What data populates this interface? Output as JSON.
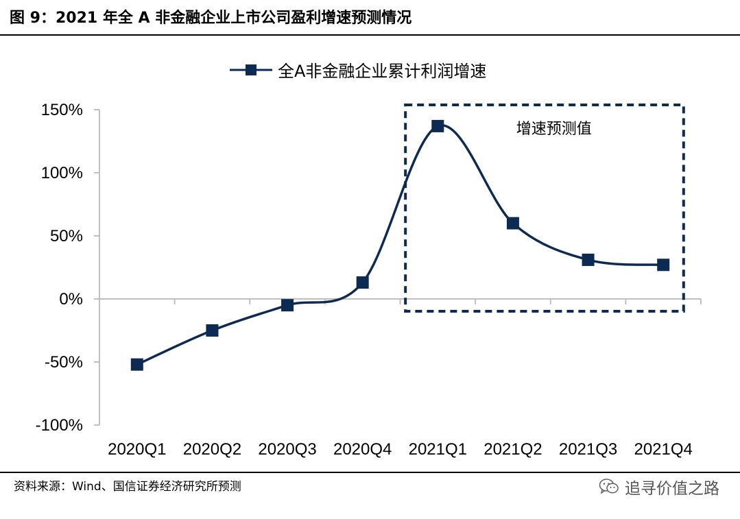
{
  "figure": {
    "title": "图 9：2021 年全 A 非金融企业上市公司盈利增速预测情况",
    "source": "资料来源：Wind、国信证券经济研究所预测",
    "watermark": "追寻价值之路",
    "watermark_icon": "wechat-icon"
  },
  "chart_data": {
    "type": "line",
    "categories": [
      "2020Q1",
      "2020Q2",
      "2020Q3",
      "2020Q4",
      "2021Q1",
      "2021Q2",
      "2021Q3",
      "2021Q4"
    ],
    "series": [
      {
        "name": "全A非金融企业累计利润增速",
        "values": [
          -52,
          -25,
          -5,
          13,
          137,
          60,
          31,
          27
        ]
      }
    ],
    "y_ticks": [
      -100,
      -50,
      0,
      50,
      100,
      150
    ],
    "y_tick_labels": [
      "-100%",
      "-50%",
      "0%",
      "50%",
      "100%",
      "150%"
    ],
    "ylim": [
      -100,
      150
    ],
    "y_unit": "%",
    "legend_position": "top-center",
    "grid": false,
    "smooth": true,
    "marker": "square",
    "color": "#0d2a52",
    "annotation": {
      "text": "增速预测值",
      "style": "dashed-box",
      "from_category": "2021Q1",
      "to_category": "2021Q4"
    }
  }
}
